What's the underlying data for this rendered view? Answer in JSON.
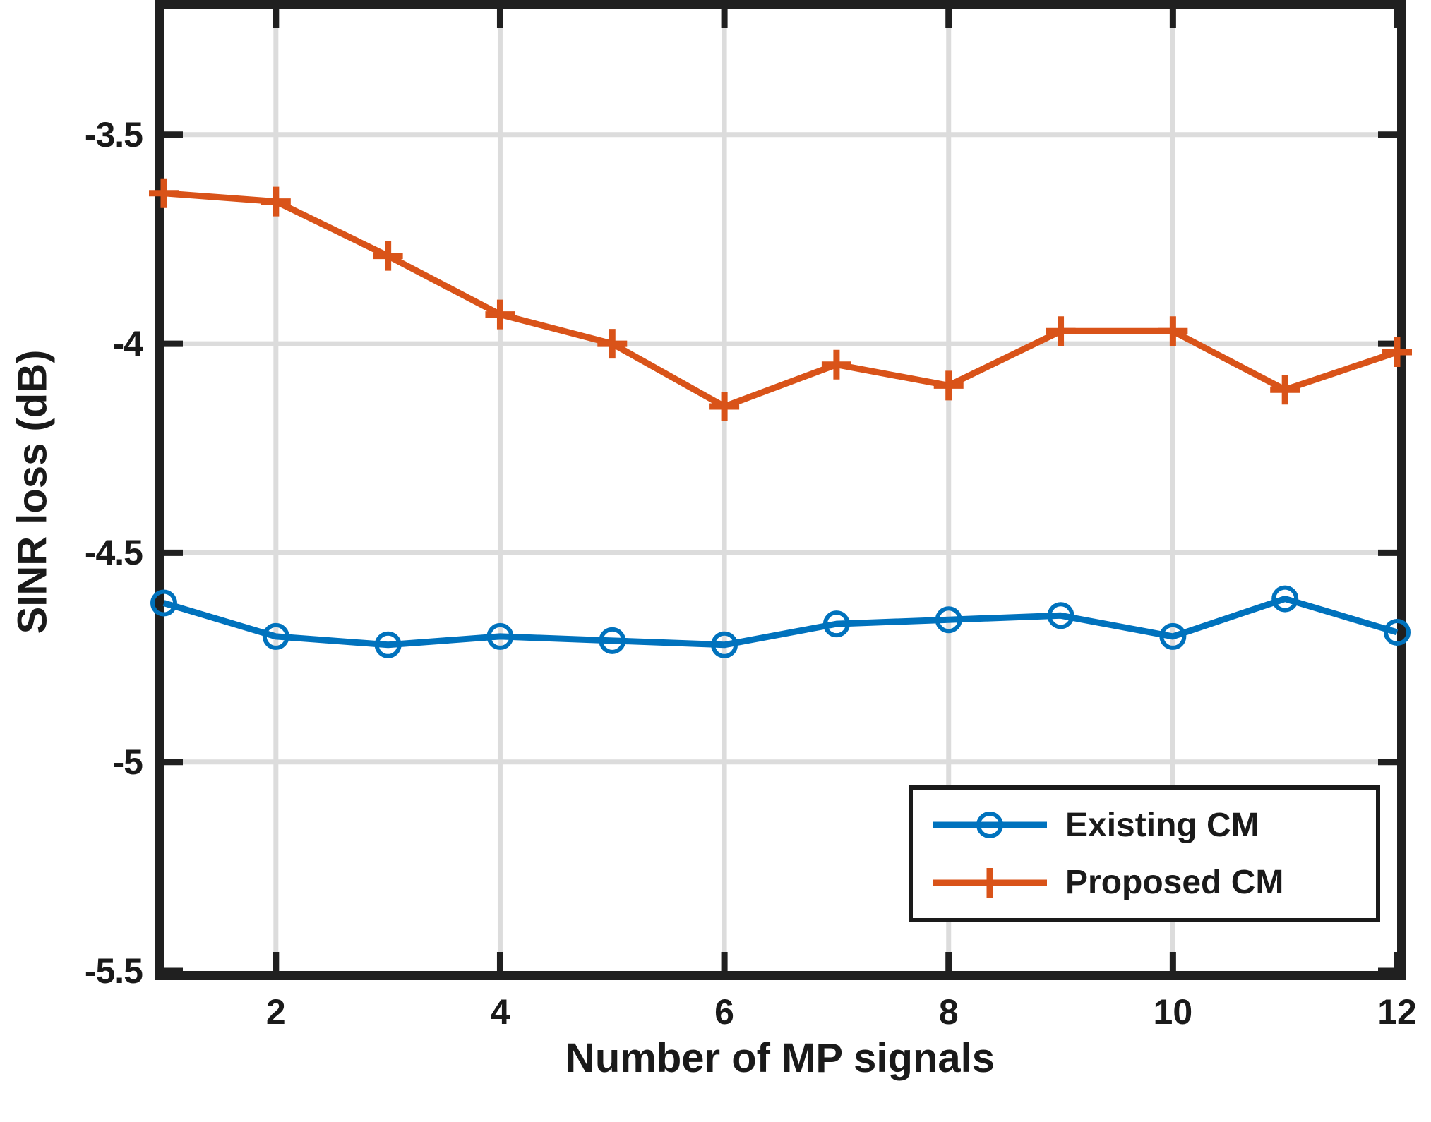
{
  "figure": {
    "background": "#ffffff",
    "axis_color": "#202020",
    "grid_color": "#dcdcdc",
    "text_color": "#1a1a1a"
  },
  "chart_data": {
    "type": "line",
    "title": "",
    "xlabel": "Number of MP signals",
    "ylabel": "SINR loss (dB)",
    "xlim": [
      1,
      12
    ],
    "ylim": [
      -5.5,
      -3.2
    ],
    "grid": true,
    "legend_position": "lower right",
    "xticks": {
      "values": [
        2,
        4,
        6,
        8,
        10,
        12
      ],
      "labels": [
        "2",
        "4",
        "6",
        "8",
        "10",
        "12"
      ]
    },
    "yticks": {
      "values": [
        -3.5,
        -4,
        -4.5,
        -5,
        -5.5
      ],
      "labels": [
        "-3.5",
        "-4",
        "-4.5",
        "-5",
        "-5.5"
      ]
    },
    "x": [
      1,
      2,
      3,
      4,
      5,
      6,
      7,
      8,
      9,
      10,
      11,
      12
    ],
    "series": [
      {
        "name": "Existing CM",
        "color": "#0072BD",
        "marker": "circle",
        "values": [
          -4.62,
          -4.7,
          -4.72,
          -4.7,
          -4.71,
          -4.72,
          -4.67,
          -4.66,
          -4.65,
          -4.7,
          -4.61,
          -4.69
        ]
      },
      {
        "name": "Proposed CM",
        "color": "#D95319",
        "marker": "plus",
        "values": [
          -3.64,
          -3.66,
          -3.79,
          -3.93,
          -4.0,
          -4.15,
          -4.05,
          -4.1,
          -3.97,
          -3.97,
          -4.11,
          -4.02
        ]
      }
    ]
  }
}
